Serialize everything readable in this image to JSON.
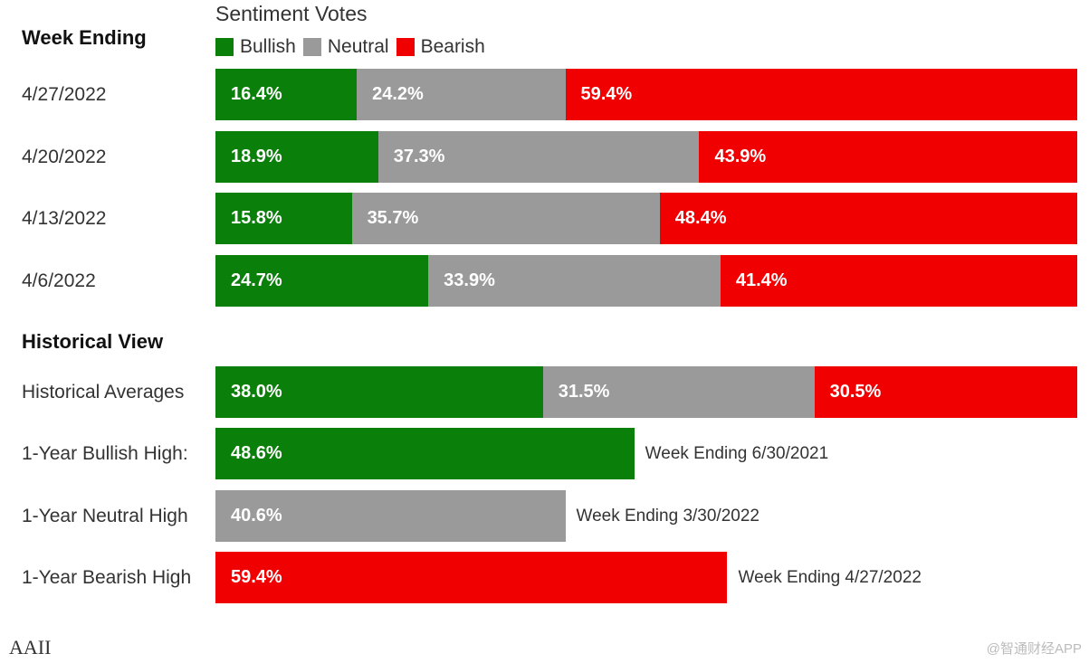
{
  "chart_data": {
    "type": "bar",
    "orientation": "horizontal",
    "stacked": true,
    "title": "Sentiment Votes",
    "legend": [
      "Bullish",
      "Neutral",
      "Bearish"
    ],
    "weekly_heading": "Week Ending",
    "historical_heading": "Historical View",
    "weekly": [
      {
        "label": "4/27/2022",
        "bullish": 16.4,
        "neutral": 24.2,
        "bearish": 59.4
      },
      {
        "label": "4/20/2022",
        "bullish": 18.9,
        "neutral": 37.3,
        "bearish": 43.9
      },
      {
        "label": "4/13/2022",
        "bullish": 15.8,
        "neutral": 35.7,
        "bearish": 48.4
      },
      {
        "label": "4/6/2022",
        "bullish": 24.7,
        "neutral": 33.9,
        "bearish": 41.4
      }
    ],
    "historical_averages": {
      "label": "Historical Averages",
      "bullish": 38.0,
      "neutral": 31.5,
      "bearish": 30.5
    },
    "highs": [
      {
        "label": "1-Year Bullish High:",
        "series": "bullish",
        "value": 48.6,
        "note": "Week Ending 6/30/2021"
      },
      {
        "label": "1-Year Neutral High",
        "series": "neutral",
        "value": 40.6,
        "note": "Week Ending 3/30/2022"
      },
      {
        "label": "1-Year Bearish High",
        "series": "bearish",
        "value": 59.4,
        "note": "Week Ending 4/27/2022"
      }
    ],
    "colors": {
      "bullish": "#0a7f0a",
      "neutral": "#9a9a9a",
      "bearish": "#f00000"
    },
    "xlim": [
      0,
      100
    ]
  },
  "footer": {
    "source": "AAII",
    "watermark": "@智通财经APP"
  }
}
